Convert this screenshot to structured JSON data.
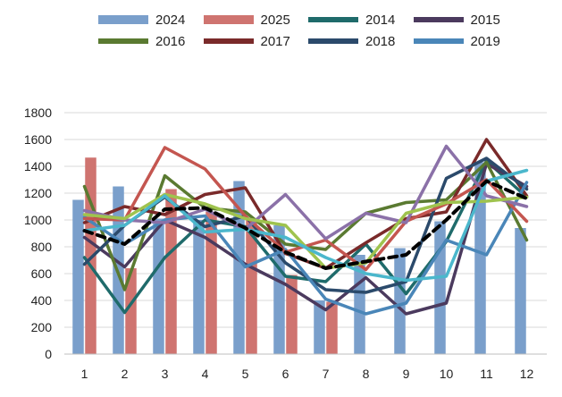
{
  "chart_data": {
    "type": "bar",
    "categories": [
      "1",
      "2",
      "3",
      "4",
      "5",
      "6",
      "7",
      "8",
      "9",
      "10",
      "11",
      "12"
    ],
    "ylim": [
      0,
      1800
    ],
    "yticks": [
      0,
      200,
      400,
      600,
      800,
      1000,
      1200,
      1400,
      1600,
      1800
    ],
    "grid": true,
    "legend_position": "top",
    "series": [
      {
        "name": "2024",
        "kind": "bar",
        "color": "#7a9fcb",
        "values": [
          1150,
          1250,
          1010,
          1000,
          1290,
          960,
          400,
          740,
          790,
          990,
          1430,
          940
        ]
      },
      {
        "name": "2025",
        "kind": "bar",
        "color": "#cf7470",
        "values": [
          1465,
          640,
          1230,
          1060,
          1000,
          590,
          390,
          null,
          null,
          null,
          null,
          null
        ]
      },
      {
        "name": "2014",
        "kind": "line",
        "color": "#1f6b6b",
        "values": [
          720,
          310,
          720,
          1000,
          950,
          580,
          540,
          820,
          450,
          840,
          1440,
          1170
        ]
      },
      {
        "name": "2015",
        "kind": "line",
        "color": "#4b3a5e",
        "values": [
          870,
          650,
          1000,
          870,
          670,
          520,
          330,
          570,
          300,
          380,
          1420,
          1250
        ]
      },
      {
        "name": "2016",
        "kind": "line",
        "color": "#5a7a31",
        "values": [
          1250,
          480,
          1330,
          1090,
          1060,
          820,
          780,
          1050,
          1130,
          1150,
          1430,
          850
        ]
      },
      {
        "name": "2017",
        "kind": "line",
        "color": "#7a2a2a",
        "values": [
          980,
          1100,
          1040,
          1190,
          1240,
          750,
          640,
          830,
          1010,
          1060,
          1600,
          1180
        ]
      },
      {
        "name": "2018",
        "kind": "line",
        "color": "#2b4a6b",
        "values": [
          670,
          960,
          1170,
          950,
          1030,
          680,
          480,
          460,
          540,
          1310,
          1460,
          1230
        ]
      },
      {
        "name": "2019",
        "kind": "line",
        "color": "#4a86b8",
        "values": [
          1020,
          820,
          1000,
          1030,
          650,
          780,
          410,
          300,
          380,
          850,
          740,
          1280
        ]
      },
      {
        "name": "",
        "kind": "line",
        "color": "#c45650",
        "values": [
          1010,
          1000,
          1540,
          1380,
          1030,
          760,
          850,
          630,
          990,
          1120,
          1300,
          990
        ]
      },
      {
        "name": "",
        "kind": "line",
        "color": "#8b71a8",
        "values": [
          1070,
          1000,
          980,
          1080,
          930,
          1190,
          860,
          1050,
          980,
          1550,
          1180,
          1100
        ]
      },
      {
        "name": "",
        "kind": "line",
        "color": "#9fc34e",
        "values": [
          1040,
          1010,
          1190,
          1120,
          1010,
          960,
          640,
          680,
          1050,
          1130,
          1140,
          1170
        ]
      },
      {
        "name": "",
        "kind": "line",
        "color": "#4bb7cc",
        "values": [
          920,
          960,
          1180,
          910,
          930,
          870,
          720,
          600,
          550,
          580,
          1290,
          1370
        ]
      },
      {
        "name": "",
        "kind": "line",
        "color": "#000000",
        "dashed": true,
        "values": [
          920,
          820,
          1080,
          1090,
          940,
          760,
          640,
          690,
          740,
          1000,
          1290,
          1160
        ]
      }
    ]
  }
}
